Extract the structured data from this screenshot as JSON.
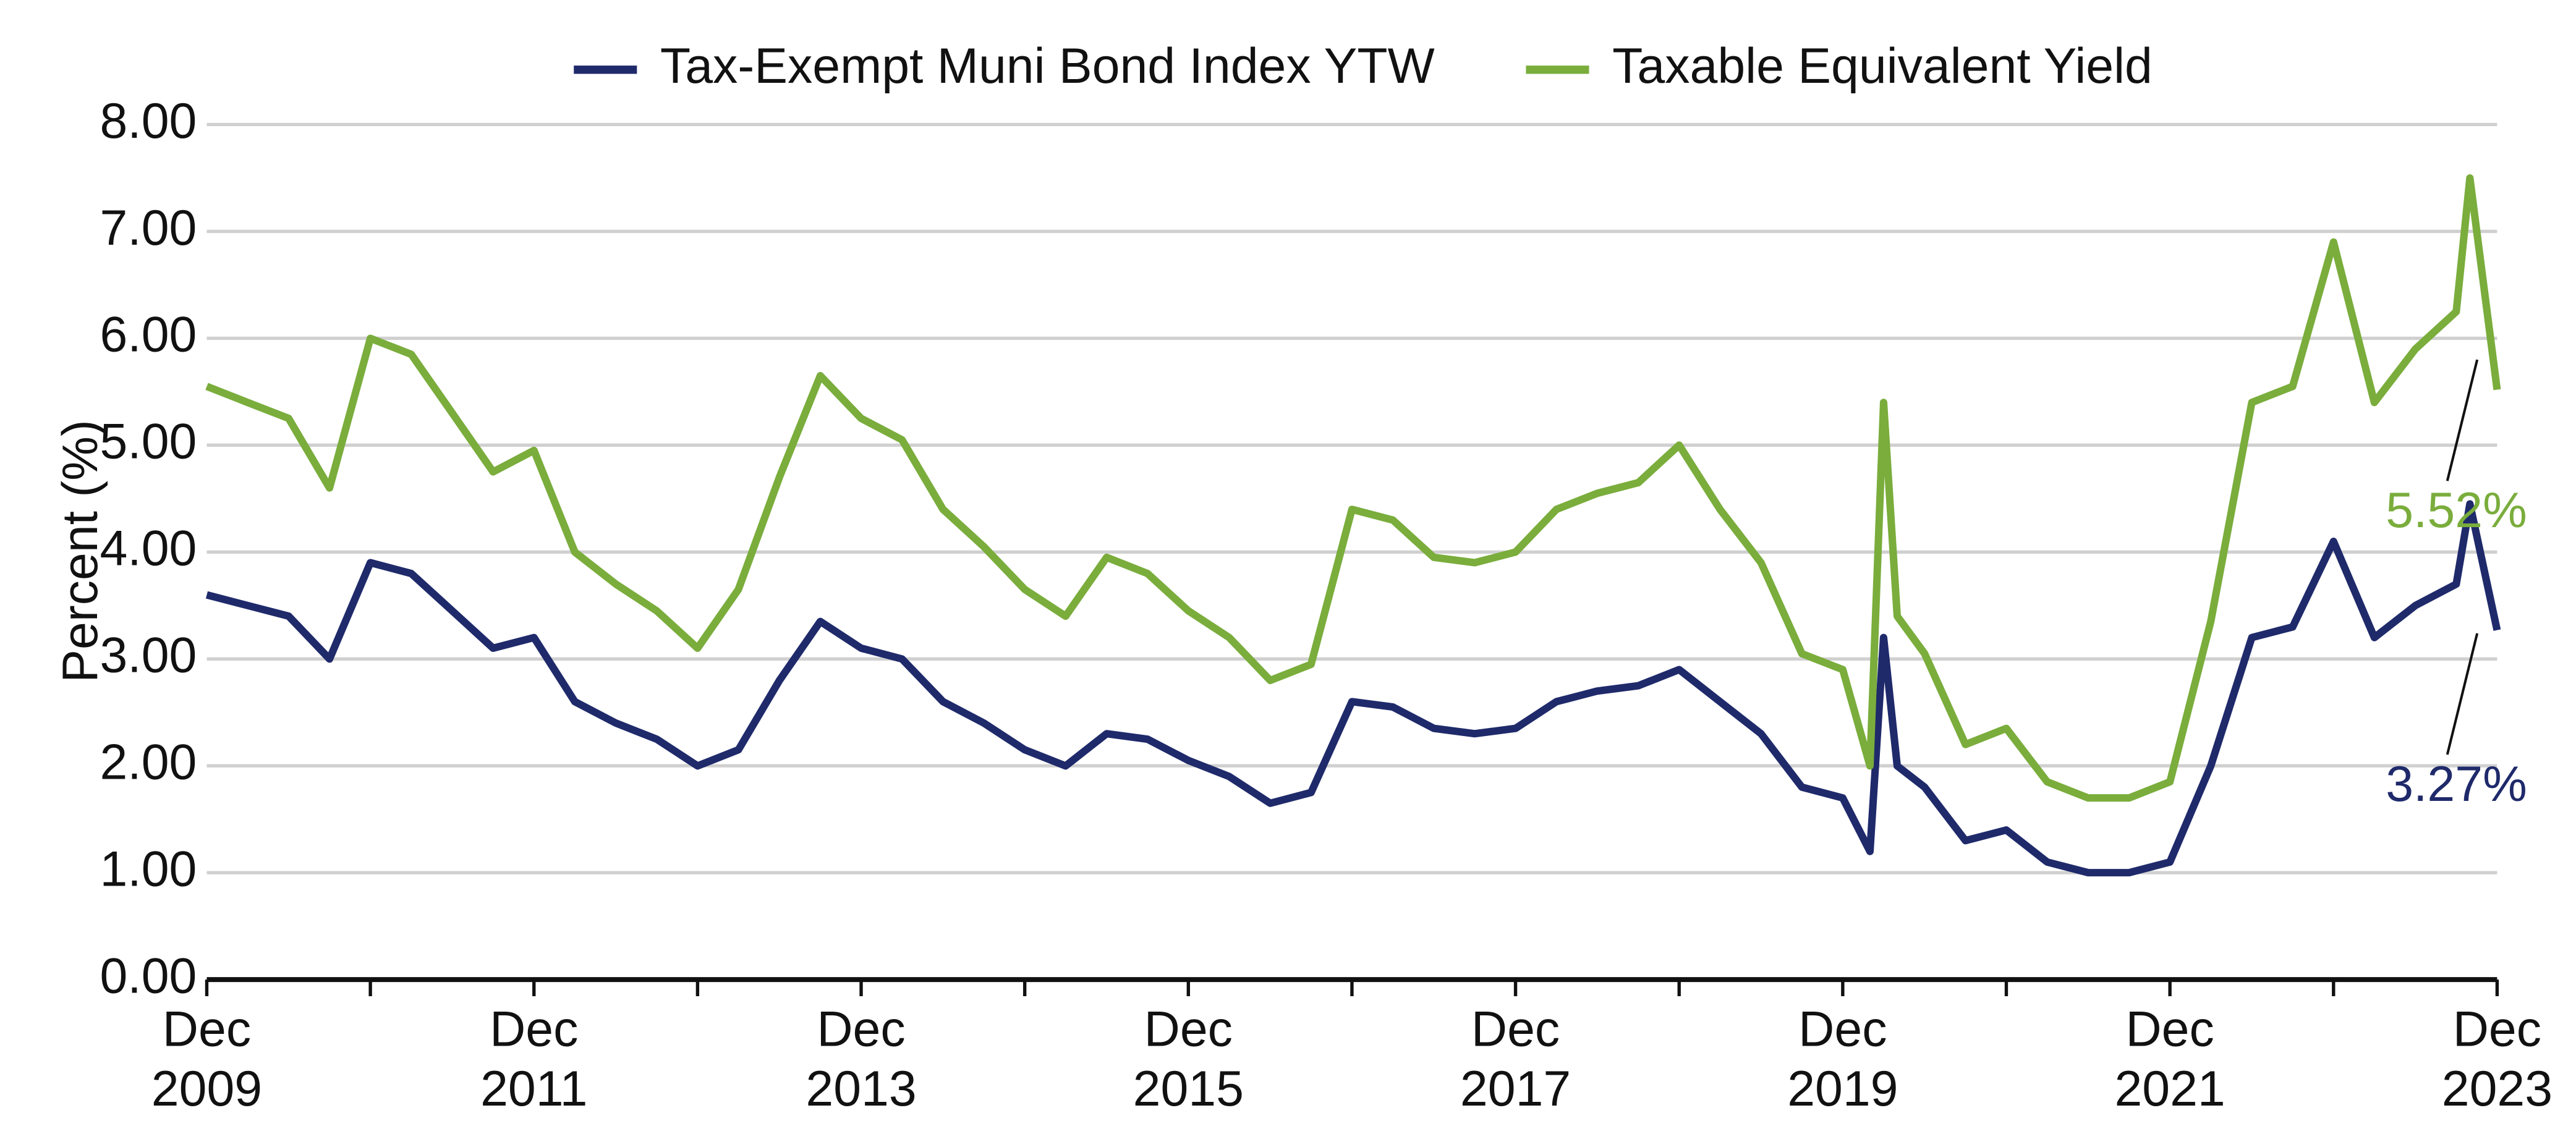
{
  "chart_data": {
    "type": "line",
    "y_label": "Percent (%)",
    "x": [
      "2009-12",
      "2010-03",
      "2010-06",
      "2010-09",
      "2010-12",
      "2011-03",
      "2011-06",
      "2011-09",
      "2011-12",
      "2012-03",
      "2012-06",
      "2012-09",
      "2012-12",
      "2013-03",
      "2013-06",
      "2013-09",
      "2013-12",
      "2014-03",
      "2014-06",
      "2014-09",
      "2014-12",
      "2015-03",
      "2015-06",
      "2015-09",
      "2015-12",
      "2016-03",
      "2016-06",
      "2016-09",
      "2016-12",
      "2017-03",
      "2017-06",
      "2017-09",
      "2017-12",
      "2018-03",
      "2018-06",
      "2018-09",
      "2018-12",
      "2019-03",
      "2019-06",
      "2019-09",
      "2019-12",
      "2020-02",
      "2020-03",
      "2020-04",
      "2020-06",
      "2020-09",
      "2020-12",
      "2021-03",
      "2021-06",
      "2021-09",
      "2021-12",
      "2022-03",
      "2022-06",
      "2022-09",
      "2022-12",
      "2023-03",
      "2023-06",
      "2023-09",
      "2023-10",
      "2023-12"
    ],
    "series": [
      {
        "name": "Tax-Exempt Muni Bond Index YTW",
        "color": "#1f2a6b",
        "values": [
          3.6,
          3.5,
          3.4,
          3.0,
          3.9,
          3.8,
          3.45,
          3.1,
          3.2,
          2.6,
          2.4,
          2.25,
          2.0,
          2.15,
          2.8,
          3.35,
          3.1,
          3.0,
          2.6,
          2.4,
          2.15,
          2.0,
          2.3,
          2.25,
          2.05,
          1.9,
          1.65,
          1.75,
          2.6,
          2.55,
          2.35,
          2.3,
          2.35,
          2.6,
          2.7,
          2.75,
          2.9,
          2.6,
          2.3,
          1.8,
          1.7,
          1.2,
          3.2,
          2.0,
          1.8,
          1.3,
          1.4,
          1.1,
          1.0,
          1.0,
          1.1,
          2.0,
          3.2,
          3.3,
          4.1,
          3.2,
          3.5,
          3.7,
          4.45,
          3.27
        ],
        "value_labels": [
          null,
          null,
          null,
          null,
          null,
          null,
          null,
          null,
          null,
          null,
          null,
          null,
          null,
          null,
          null,
          null,
          null,
          null,
          null,
          null,
          null,
          null,
          null,
          null,
          null,
          null,
          null,
          null,
          null,
          null,
          null,
          null,
          null,
          null,
          null,
          null,
          null,
          null,
          null,
          null,
          null,
          null,
          null,
          null,
          null,
          null,
          null,
          null,
          null,
          null,
          null,
          null,
          null,
          null,
          null,
          null,
          null,
          null,
          null,
          "3.27%"
        ]
      },
      {
        "name": "Taxable Equivalent Yield",
        "color": "#7aad3c",
        "values": [
          5.55,
          5.4,
          5.25,
          4.6,
          6.0,
          5.85,
          5.3,
          4.75,
          4.95,
          4.0,
          3.7,
          3.45,
          3.1,
          3.65,
          4.7,
          5.65,
          5.25,
          5.05,
          4.4,
          4.05,
          3.65,
          3.4,
          3.95,
          3.8,
          3.45,
          3.2,
          2.8,
          2.95,
          4.4,
          4.3,
          3.95,
          3.9,
          4.0,
          4.4,
          4.55,
          4.65,
          5.0,
          4.4,
          3.9,
          3.05,
          2.9,
          2.0,
          5.4,
          3.4,
          3.05,
          2.2,
          2.35,
          1.85,
          1.7,
          1.7,
          1.85,
          3.35,
          5.4,
          5.55,
          6.9,
          5.4,
          5.9,
          6.25,
          7.5,
          5.52
        ],
        "value_labels": [
          null,
          null,
          null,
          null,
          null,
          null,
          null,
          null,
          null,
          null,
          null,
          null,
          null,
          null,
          null,
          null,
          null,
          null,
          null,
          null,
          null,
          null,
          null,
          null,
          null,
          null,
          null,
          null,
          null,
          null,
          null,
          null,
          null,
          null,
          null,
          null,
          null,
          null,
          null,
          null,
          null,
          null,
          null,
          null,
          null,
          null,
          null,
          null,
          null,
          null,
          null,
          null,
          null,
          null,
          null,
          null,
          null,
          null,
          null,
          "5.52%"
        ]
      }
    ],
    "xlim": [
      "2009-12",
      "2023-12"
    ],
    "xticks": [
      {
        "value": "2009-12",
        "label": [
          "Dec",
          "2009"
        ]
      },
      {
        "value": "2011-12",
        "label": [
          "Dec",
          "2011"
        ]
      },
      {
        "value": "2013-12",
        "label": [
          "Dec",
          "2013"
        ]
      },
      {
        "value": "2015-12",
        "label": [
          "Dec",
          "2015"
        ]
      },
      {
        "value": "2017-12",
        "label": [
          "Dec",
          "2017"
        ]
      },
      {
        "value": "2019-12",
        "label": [
          "Dec",
          "2019"
        ]
      },
      {
        "value": "2021-12",
        "label": [
          "Dec",
          "2021"
        ]
      },
      {
        "value": "2023-12",
        "label": [
          "Dec",
          "2023"
        ]
      }
    ],
    "xminorticks": [
      "2010-12",
      "2012-12",
      "2014-12",
      "2016-12",
      "2018-12",
      "2020-12",
      "2022-12"
    ],
    "ylim": [
      0,
      8
    ],
    "yticks": [
      {
        "value": 0,
        "label": "0.00"
      },
      {
        "value": 1,
        "label": "1.00"
      },
      {
        "value": 2,
        "label": "2.00"
      },
      {
        "value": 3,
        "label": "3.00"
      },
      {
        "value": 4,
        "label": "4.00"
      },
      {
        "value": 5,
        "label": "5.00"
      },
      {
        "value": 6,
        "label": "6.00"
      },
      {
        "value": 7,
        "label": "7.00"
      },
      {
        "value": 8,
        "label": "8.00"
      }
    ],
    "grid": true,
    "legend": "top"
  }
}
